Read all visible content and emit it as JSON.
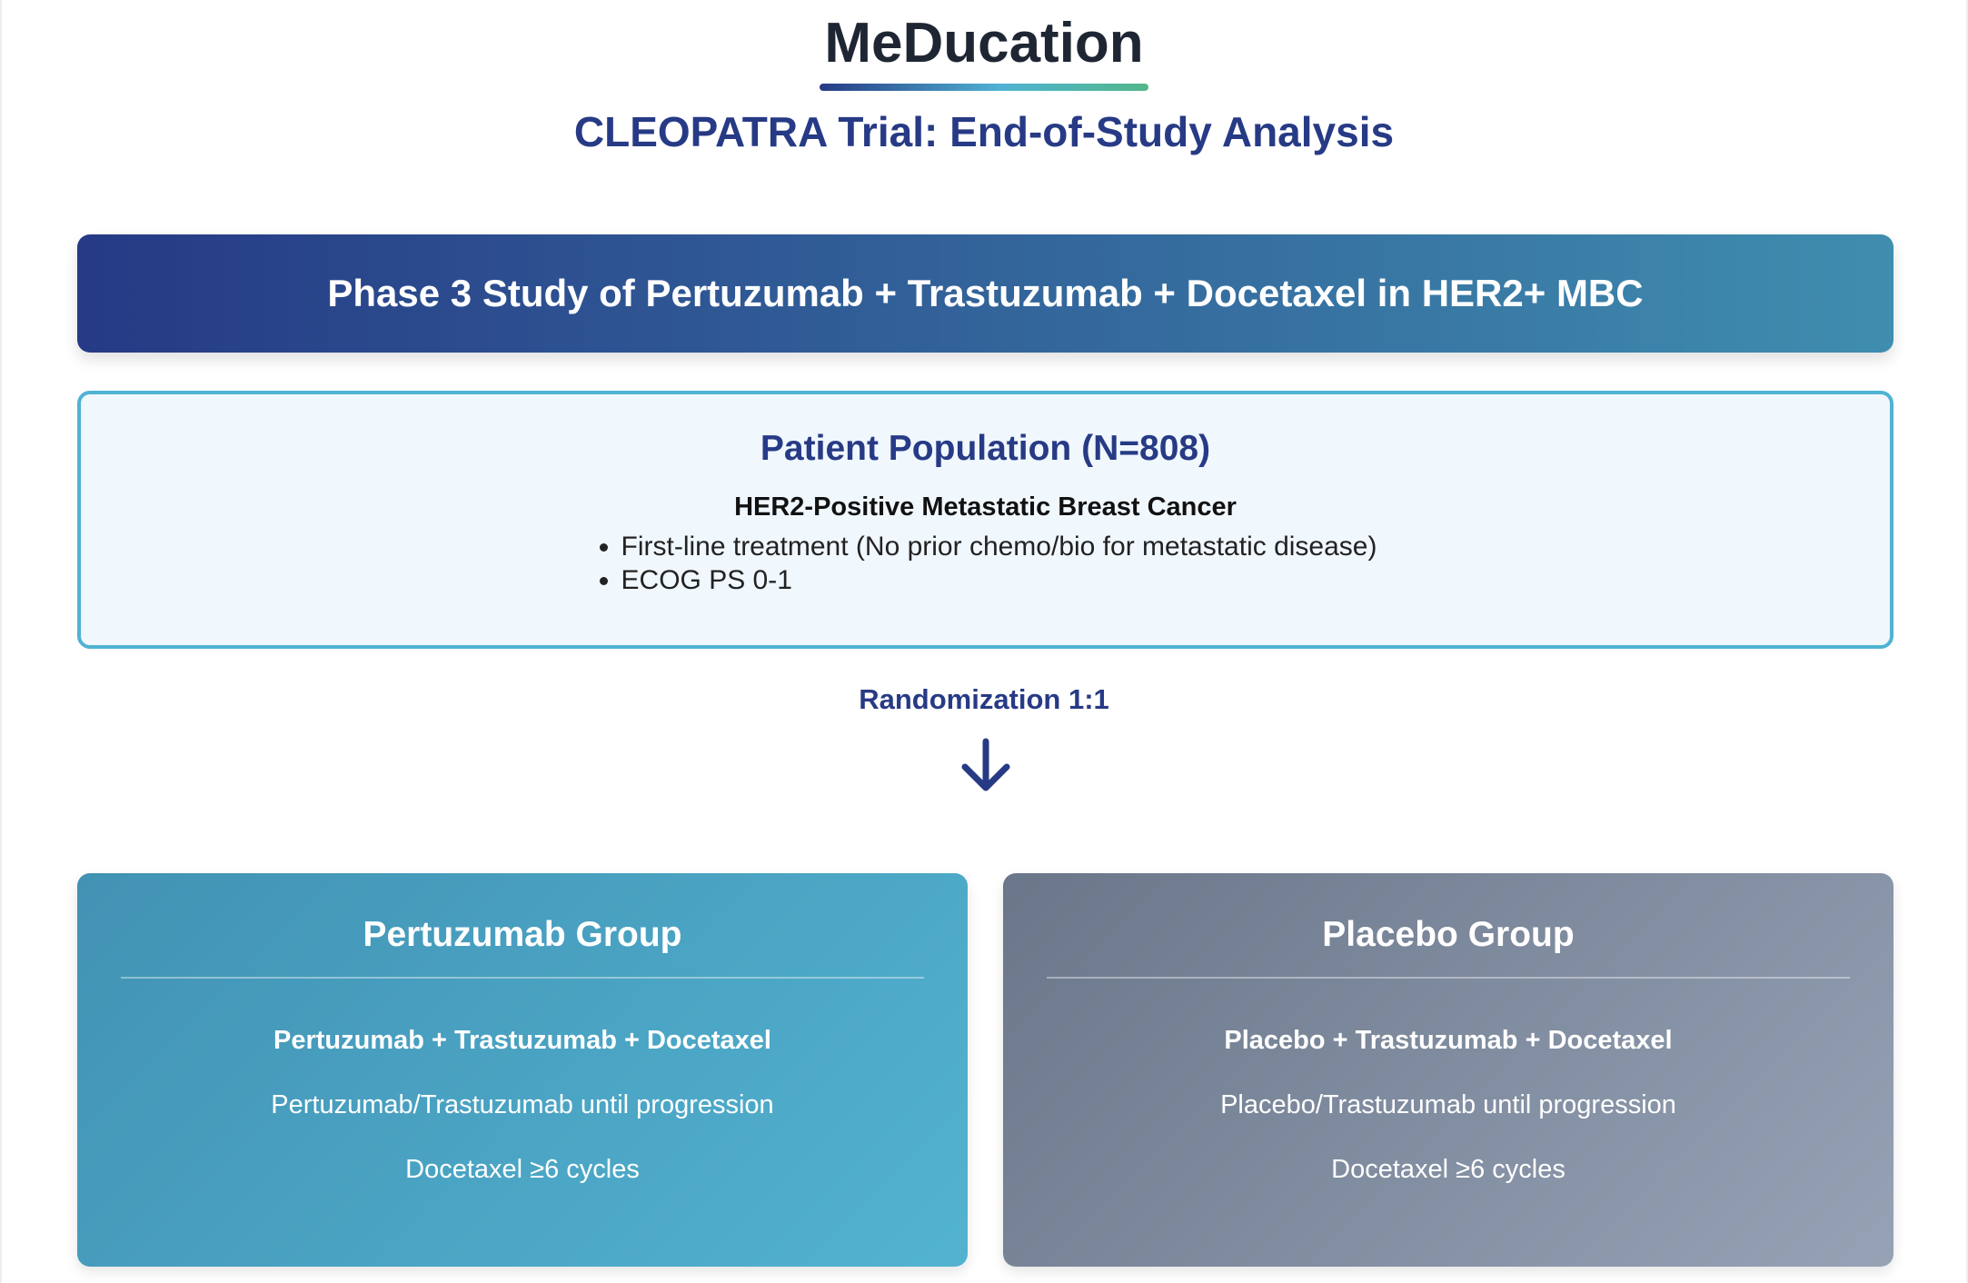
{
  "brand": {
    "name": "MeDucation"
  },
  "subtitle": "CLEOPATRA Trial: End-of-Study Analysis",
  "header": "Phase 3 Study of Pertuzumab + Trastuzumab + Docetaxel in HER2+ MBC",
  "population": {
    "title": "Patient Population (N=808)",
    "subtitle": "HER2-Positive Metastatic Breast Cancer",
    "criteria": [
      "First-line treatment (No prior chemo/bio for metastatic disease)",
      "ECOG PS 0-1"
    ]
  },
  "randomization": "Randomization 1:1",
  "arrow_icon": "arrow-down-icon",
  "groups": [
    {
      "title": "Pertuzumab Group",
      "regimen": "Pertuzumab + Trastuzumab + Docetaxel",
      "maintenance": "Pertuzumab/Trastuzumab until progression",
      "docetaxel": "Docetaxel ≥6 cycles"
    },
    {
      "title": "Placebo Group",
      "regimen": "Placebo + Trastuzumab + Docetaxel",
      "maintenance": "Placebo/Trastuzumab until progression",
      "docetaxel": "Docetaxel ≥6 cycles"
    }
  ],
  "colors": {
    "primary": "#273a85",
    "accent": "#4fb3d3",
    "green": "#52b788",
    "pertuzumab": "#4a9fc3",
    "placebo": "#7d889c"
  }
}
